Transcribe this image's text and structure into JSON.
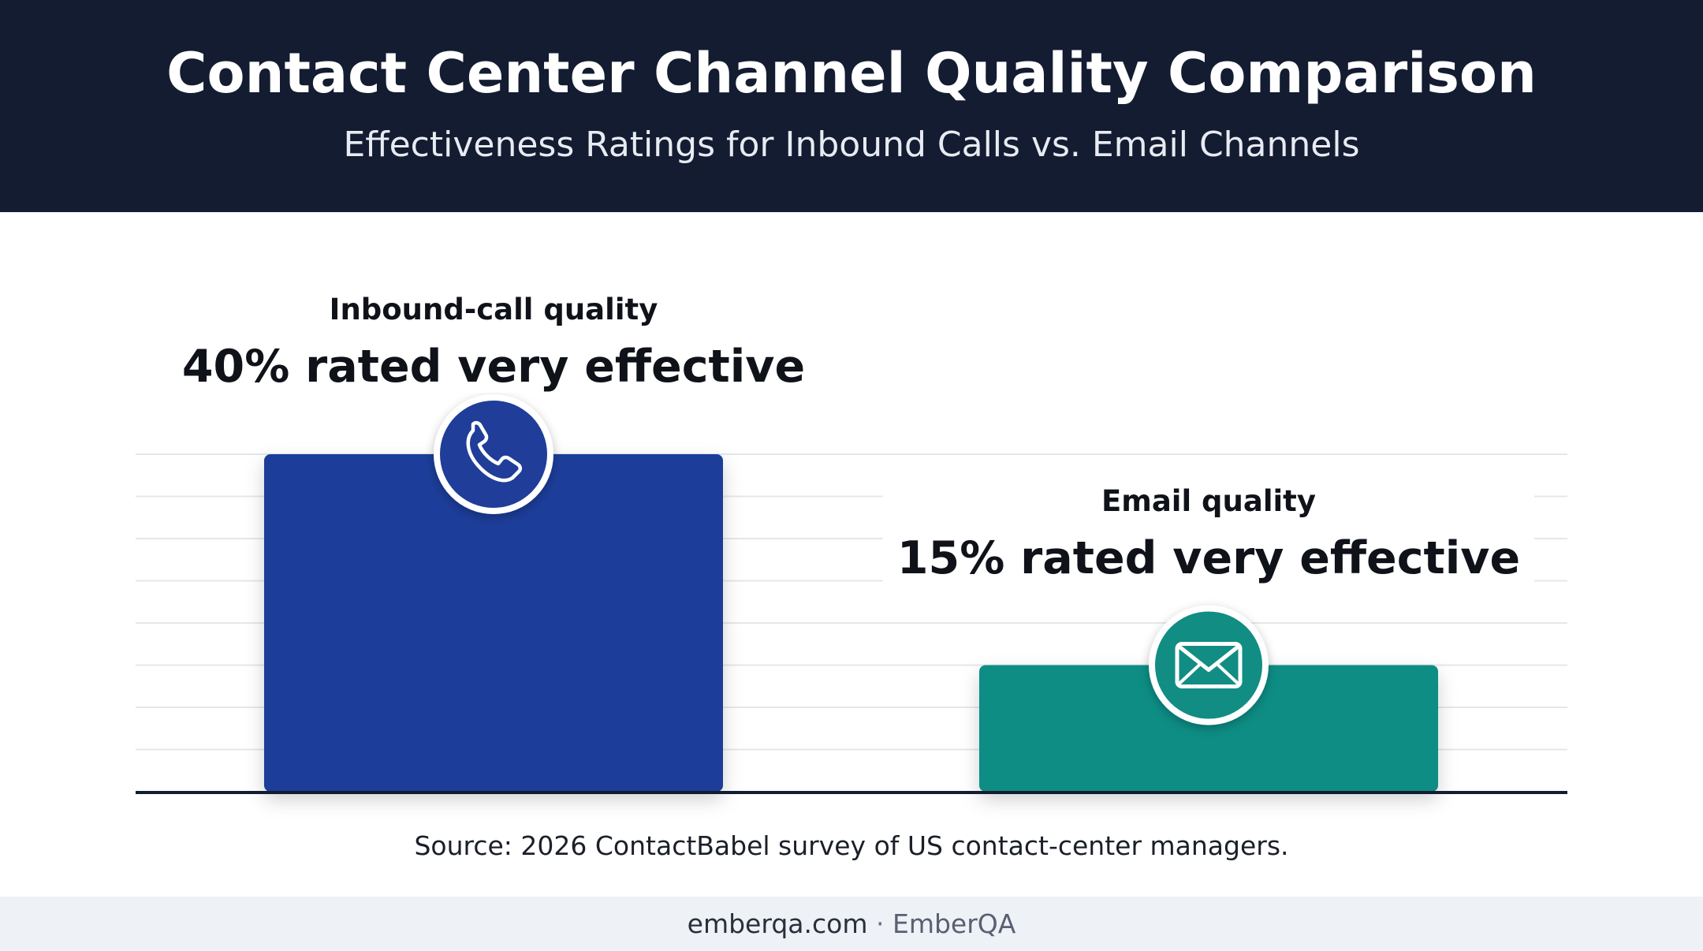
{
  "header": {
    "title": "Contact Center Channel Quality Comparison",
    "subtitle": "Effectiveness Ratings for Inbound Calls vs. Email Channels"
  },
  "chart_data": {
    "type": "bar",
    "categories": [
      "Inbound-call quality",
      "Email quality"
    ],
    "values": [
      40,
      15
    ],
    "value_labels": [
      "40% rated very effective",
      "15% rated very effective"
    ],
    "unit": "%",
    "ylim": [
      0,
      40
    ],
    "grid": true,
    "icons": [
      "phone-icon",
      "envelope-icon"
    ],
    "colors": [
      "#1f3d99",
      "#118d84"
    ]
  },
  "source": "Source: 2026 ContactBabel survey of US contact-center managers.",
  "footer": {
    "site": "emberqa.com",
    "separator": "·",
    "brand": "EmberQA"
  }
}
